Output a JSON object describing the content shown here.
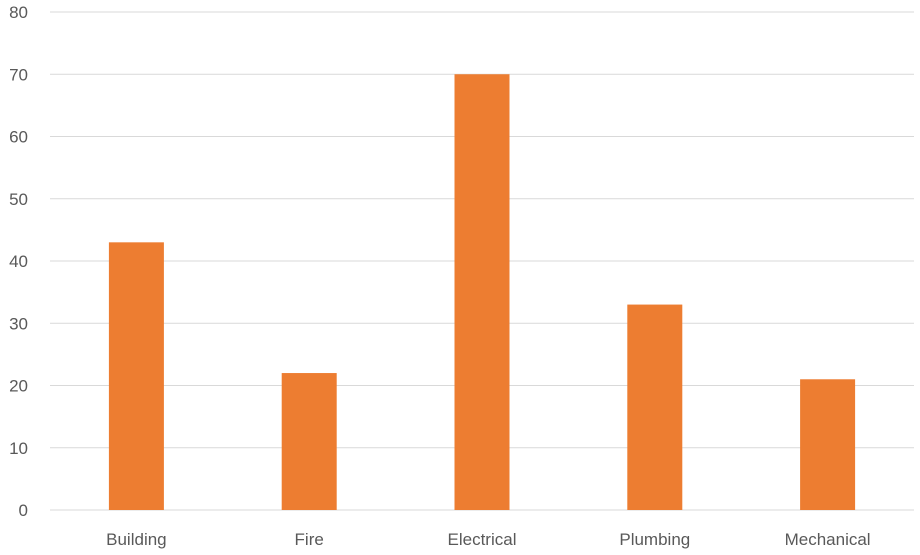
{
  "chart_data": {
    "type": "bar",
    "title": "",
    "xlabel": "",
    "ylabel": "",
    "categories": [
      "Building",
      "Fire",
      "Electrical",
      "Plumbing",
      "Mechanical"
    ],
    "values": [
      43,
      22,
      70,
      33,
      21
    ],
    "ylim": [
      0,
      80
    ],
    "yticks": [
      "0",
      "10",
      "20",
      "30",
      "40",
      "50",
      "60",
      "70",
      "80"
    ],
    "grid": true,
    "legend": "none",
    "colors": {
      "bar": "#ED7D31",
      "grid": "#D9D9D9",
      "tick_text": "#595959"
    }
  }
}
